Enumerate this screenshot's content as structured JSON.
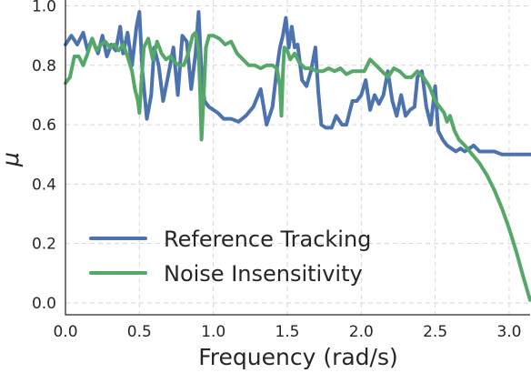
{
  "chart_data": {
    "type": "line",
    "title": "",
    "xlabel": "Frequency (rad/s)",
    "ylabel": "μ",
    "xlim": [
      0,
      3.1416
    ],
    "ylim": [
      -0.04,
      1.02
    ],
    "xticks": [
      0.0,
      0.5,
      1.0,
      1.5,
      2.0,
      2.5,
      3.0
    ],
    "xtick_labels": [
      "0.0",
      "0.5",
      "1.0",
      "1.5",
      "2.0",
      "2.5",
      "3.0"
    ],
    "yticks": [
      0.0,
      0.2,
      0.4,
      0.6,
      0.8,
      1.0
    ],
    "ytick_labels": [
      "0.0",
      "0.2",
      "0.4",
      "0.6",
      "0.8",
      "1.0"
    ],
    "grid": true,
    "legend_position": "lower-left",
    "series": [
      {
        "name": "Reference Tracking",
        "color": "#4c72b0",
        "x": [
          0.0,
          0.04,
          0.08,
          0.12,
          0.15,
          0.18,
          0.22,
          0.25,
          0.28,
          0.31,
          0.34,
          0.37,
          0.39,
          0.42,
          0.45,
          0.48,
          0.5,
          0.52,
          0.55,
          0.58,
          0.6,
          0.63,
          0.66,
          0.7,
          0.73,
          0.76,
          0.79,
          0.82,
          0.85,
          0.88,
          0.9,
          0.92,
          0.94,
          0.97,
          1.0,
          1.03,
          1.07,
          1.12,
          1.17,
          1.22,
          1.27,
          1.32,
          1.36,
          1.4,
          1.43,
          1.45,
          1.47,
          1.49,
          1.51,
          1.53,
          1.55,
          1.57,
          1.6,
          1.63,
          1.66,
          1.69,
          1.71,
          1.73,
          1.76,
          1.8,
          1.83,
          1.87,
          1.9,
          1.94,
          1.97,
          2.0,
          2.03,
          2.06,
          2.09,
          2.12,
          2.15,
          2.18,
          2.21,
          2.24,
          2.27,
          2.3,
          2.33,
          2.36,
          2.38,
          2.41,
          2.44,
          2.47,
          2.5,
          2.52,
          2.55,
          2.58,
          2.61,
          2.64,
          2.67,
          2.7,
          2.73,
          2.76,
          2.8,
          2.85,
          2.9,
          2.95,
          3.0,
          3.05,
          3.1,
          3.1416
        ],
        "y": [
          0.87,
          0.9,
          0.87,
          0.91,
          0.85,
          0.89,
          0.84,
          0.9,
          0.83,
          0.87,
          0.85,
          0.93,
          0.84,
          0.91,
          0.8,
          0.93,
          0.98,
          0.78,
          0.62,
          0.7,
          0.86,
          0.8,
          0.68,
          0.78,
          0.86,
          0.7,
          0.9,
          0.88,
          0.72,
          0.84,
          0.98,
          0.78,
          0.68,
          0.66,
          0.65,
          0.64,
          0.62,
          0.62,
          0.61,
          0.63,
          0.66,
          0.72,
          0.6,
          0.66,
          0.79,
          0.86,
          0.9,
          0.96,
          0.86,
          0.93,
          0.86,
          0.87,
          0.75,
          0.73,
          0.78,
          0.86,
          0.71,
          0.6,
          0.59,
          0.59,
          0.63,
          0.6,
          0.6,
          0.68,
          0.68,
          0.7,
          0.75,
          0.65,
          0.7,
          0.67,
          0.7,
          0.78,
          0.68,
          0.63,
          0.7,
          0.63,
          0.65,
          0.66,
          0.76,
          0.78,
          0.66,
          0.6,
          0.73,
          0.58,
          0.55,
          0.53,
          0.52,
          0.51,
          0.52,
          0.51,
          0.52,
          0.53,
          0.51,
          0.51,
          0.51,
          0.5,
          0.5,
          0.5,
          0.5,
          0.5
        ]
      },
      {
        "name": "Noise Insensitivity",
        "color": "#55a868",
        "x": [
          0.0,
          0.03,
          0.06,
          0.09,
          0.12,
          0.15,
          0.18,
          0.21,
          0.24,
          0.27,
          0.3,
          0.33,
          0.36,
          0.39,
          0.42,
          0.45,
          0.47,
          0.49,
          0.5,
          0.51,
          0.53,
          0.56,
          0.59,
          0.62,
          0.65,
          0.68,
          0.71,
          0.74,
          0.77,
          0.8,
          0.83,
          0.86,
          0.88,
          0.9,
          0.91,
          0.92,
          0.935,
          0.95,
          0.97,
          1.0,
          1.04,
          1.08,
          1.12,
          1.16,
          1.2,
          1.24,
          1.28,
          1.32,
          1.36,
          1.4,
          1.43,
          1.45,
          1.46,
          1.47,
          1.48,
          1.5,
          1.52,
          1.55,
          1.58,
          1.62,
          1.66,
          1.7,
          1.74,
          1.78,
          1.82,
          1.86,
          1.9,
          1.94,
          1.98,
          2.02,
          2.06,
          2.1,
          2.14,
          2.18,
          2.22,
          2.26,
          2.3,
          2.34,
          2.38,
          2.42,
          2.46,
          2.5,
          2.53,
          2.56,
          2.58,
          2.6,
          2.63,
          2.66,
          2.7,
          2.75,
          2.8,
          2.85,
          2.9,
          2.95,
          3.0,
          3.05,
          3.1,
          3.1416
        ],
        "y": [
          0.74,
          0.76,
          0.83,
          0.83,
          0.8,
          0.84,
          0.89,
          0.85,
          0.87,
          0.88,
          0.86,
          0.87,
          0.85,
          0.87,
          0.83,
          0.78,
          0.72,
          0.68,
          0.64,
          0.72,
          0.86,
          0.89,
          0.82,
          0.88,
          0.84,
          0.82,
          0.83,
          0.81,
          0.8,
          0.8,
          0.84,
          0.9,
          0.91,
          0.85,
          0.72,
          0.55,
          0.7,
          0.86,
          0.9,
          0.9,
          0.89,
          0.87,
          0.88,
          0.84,
          0.82,
          0.8,
          0.8,
          0.79,
          0.8,
          0.8,
          0.79,
          0.73,
          0.63,
          0.77,
          0.86,
          0.85,
          0.82,
          0.84,
          0.81,
          0.79,
          0.79,
          0.78,
          0.78,
          0.79,
          0.78,
          0.79,
          0.77,
          0.78,
          0.78,
          0.78,
          0.82,
          0.8,
          0.78,
          0.76,
          0.79,
          0.78,
          0.76,
          0.76,
          0.78,
          0.76,
          0.73,
          0.68,
          0.66,
          0.64,
          0.61,
          0.63,
          0.58,
          0.55,
          0.53,
          0.5,
          0.47,
          0.43,
          0.38,
          0.32,
          0.25,
          0.17,
          0.08,
          0.01
        ]
      }
    ]
  }
}
